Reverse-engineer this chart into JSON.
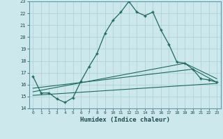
{
  "title": "",
  "xlabel": "Humidex (Indice chaleur)",
  "bg_color": "#cce8ec",
  "grid_color": "#aacfd5",
  "line_color": "#1a6b5a",
  "xlim": [
    -0.5,
    23.5
  ],
  "ylim": [
    14,
    23
  ],
  "yticks": [
    14,
    15,
    16,
    17,
    18,
    19,
    20,
    21,
    22,
    23
  ],
  "xticks": [
    0,
    1,
    2,
    3,
    4,
    5,
    6,
    7,
    8,
    9,
    10,
    11,
    12,
    13,
    14,
    15,
    16,
    17,
    18,
    19,
    20,
    21,
    22,
    23
  ],
  "line1_x": [
    0,
    1,
    2,
    3,
    4,
    5,
    6,
    7,
    8,
    9,
    10,
    11,
    12,
    13,
    14,
    15,
    16,
    17,
    18,
    19,
    20,
    21,
    22,
    23
  ],
  "line1_y": [
    16.7,
    15.3,
    15.3,
    14.8,
    14.5,
    14.9,
    16.3,
    17.5,
    18.6,
    20.3,
    21.4,
    22.1,
    23.0,
    22.1,
    21.8,
    22.1,
    20.6,
    19.4,
    17.9,
    17.8,
    17.3,
    16.5,
    16.4,
    16.2
  ],
  "line2_x": [
    0,
    23
  ],
  "line2_y": [
    15.1,
    16.1
  ],
  "line3_x": [
    0,
    19,
    23
  ],
  "line3_y": [
    15.4,
    17.8,
    16.5
  ],
  "line4_x": [
    0,
    20,
    23
  ],
  "line4_y": [
    15.7,
    17.3,
    16.2
  ]
}
